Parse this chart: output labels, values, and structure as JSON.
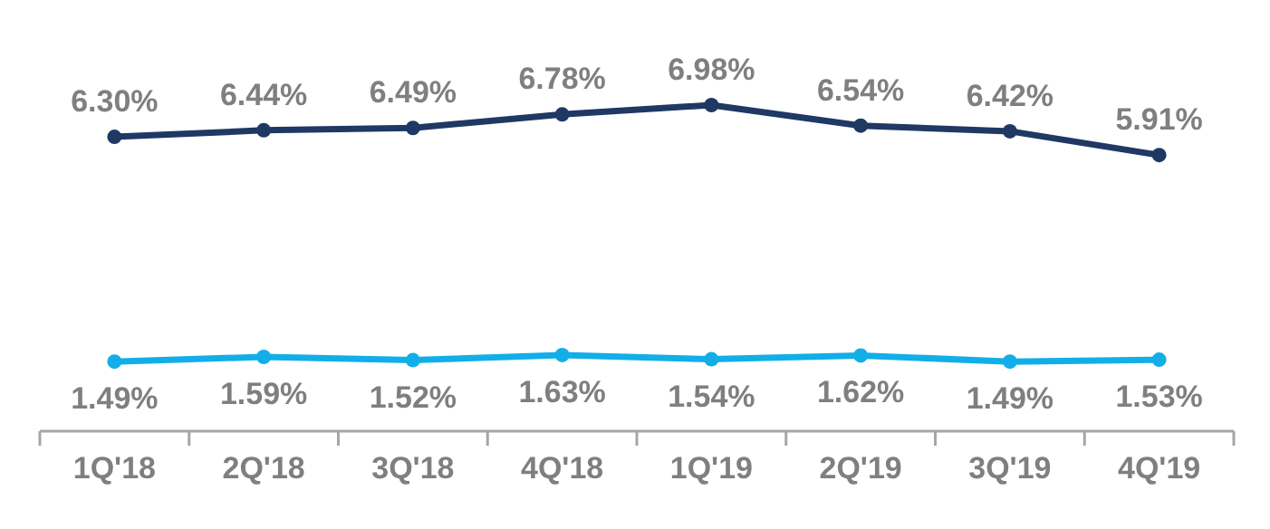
{
  "chart_data": {
    "type": "line",
    "categories": [
      "1Q'18",
      "2Q'18",
      "3Q'18",
      "4Q'18",
      "1Q'19",
      "2Q'19",
      "3Q'19",
      "4Q'19"
    ],
    "series": [
      {
        "color": "#1f3864",
        "values": [
          6.3,
          6.44,
          6.49,
          6.78,
          6.98,
          6.54,
          6.42,
          5.91
        ],
        "value_labels": [
          "6.30%",
          "6.44%",
          "6.49%",
          "6.78%",
          "6.98%",
          "6.54%",
          "6.42%",
          "5.91%"
        ]
      },
      {
        "color": "#12aee8",
        "values": [
          1.49,
          1.59,
          1.52,
          1.63,
          1.54,
          1.62,
          1.49,
          1.53
        ],
        "value_labels": [
          "1.49%",
          "1.59%",
          "1.52%",
          "1.63%",
          "1.54%",
          "1.62%",
          "1.49%",
          "1.53%"
        ]
      }
    ],
    "tick_labels": "x",
    "marker": "circle"
  }
}
